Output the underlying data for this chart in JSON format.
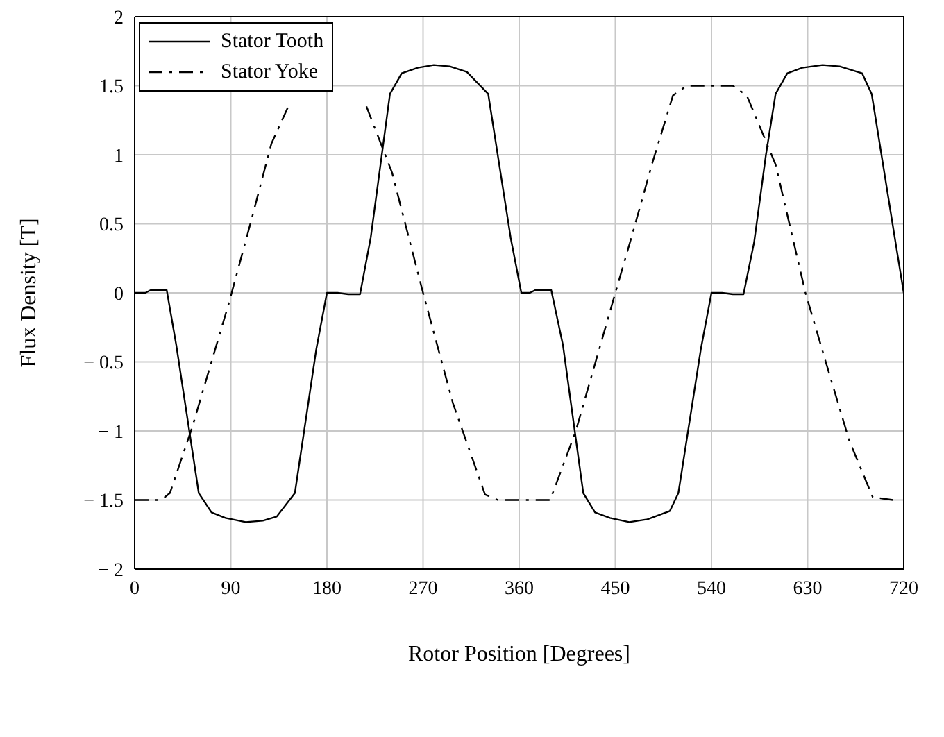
{
  "chart_data": {
    "type": "line",
    "xlabel": "Rotor Position [Degrees]",
    "ylabel": "Flux Density [T]",
    "xlim": [
      0,
      720
    ],
    "xticks": [
      0,
      90,
      180,
      270,
      360,
      450,
      540,
      630,
      720
    ],
    "ylim": [
      -2,
      2
    ],
    "yticks": [
      {
        "value": -2,
        "label": "− 2"
      },
      {
        "value": -1.5,
        "label": "− 1.5"
      },
      {
        "value": -1,
        "label": "− 1"
      },
      {
        "value": -0.5,
        "label": "− 0.5"
      },
      0,
      0.5,
      1,
      1.5,
      2
    ],
    "grid": true,
    "legend": "top left",
    "marker": "none",
    "series": [
      {
        "name": "Stator Tooth",
        "color": "#000000",
        "line_style": "solid",
        "x": [
          0,
          10,
          15,
          30,
          39,
          60,
          72,
          85,
          104,
          120,
          133,
          150,
          170,
          180,
          190,
          200,
          211,
          221,
          239,
          250,
          265,
          280,
          295,
          311,
          331,
          352,
          362,
          370,
          375,
          390,
          401,
          420,
          431,
          445,
          463,
          480,
          501,
          509,
          530,
          540,
          550,
          560,
          570,
          580,
          591,
          600,
          611,
          625,
          644,
          660,
          681,
          690,
          712,
          720
        ],
        "values": [
          0,
          0,
          0.02,
          0.02,
          -0.38,
          -1.45,
          -1.59,
          -1.63,
          -1.66,
          -1.65,
          -1.62,
          -1.45,
          -0.41,
          0,
          0,
          -0.01,
          -0.01,
          0.4,
          1.44,
          1.59,
          1.63,
          1.65,
          1.64,
          1.6,
          1.44,
          0.4,
          0,
          0,
          0.02,
          0.02,
          -0.38,
          -1.45,
          -1.59,
          -1.63,
          -1.66,
          -1.64,
          -1.58,
          -1.45,
          -0.41,
          0,
          0,
          -0.01,
          -0.01,
          0.37,
          1.0,
          1.44,
          1.59,
          1.63,
          1.65,
          1.64,
          1.59,
          1.44,
          0.38,
          0
        ]
      },
      {
        "name": "Stator Yoke",
        "color": "#000000",
        "line_style": "dashed",
        "x": [
          0,
          25,
          33,
          54,
          70,
          88,
          109,
          128,
          145,
          160,
          180,
          200,
          217,
          241,
          270,
          298,
          328,
          340,
          360,
          389,
          413,
          450,
          465,
          485,
          504,
          517,
          540,
          560,
          573,
          600,
          628,
          647,
          669,
          691,
          710
        ],
        "values": [
          -1.5,
          -1.5,
          -1.45,
          -0.97,
          -0.55,
          -0.08,
          0.52,
          1.08,
          1.37,
          null,
          null,
          null,
          1.35,
          0.87,
          0,
          -0.8,
          -1.46,
          -1.5,
          -1.5,
          -1.5,
          -1.0,
          0,
          0.4,
          0.95,
          1.43,
          1.5,
          1.5,
          1.5,
          1.43,
          0.93,
          0,
          -0.5,
          -1.07,
          -1.48,
          -1.5
        ]
      }
    ]
  }
}
